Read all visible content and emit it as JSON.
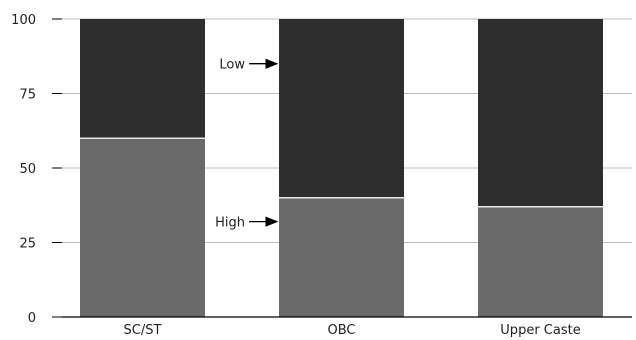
{
  "chart_data": {
    "type": "bar",
    "stacked": true,
    "categories": [
      "SC/ST",
      "OBC",
      "Upper Caste"
    ],
    "series": [
      {
        "name": "High",
        "values": [
          60,
          40,
          37
        ],
        "color": "#6a6a6a"
      },
      {
        "name": "Low",
        "values": [
          40,
          60,
          63
        ],
        "color": "#2e2e2e"
      }
    ],
    "ylim": [
      0,
      100
    ],
    "yticks": [
      "0",
      "25",
      "50",
      "75",
      "100"
    ],
    "grid": true,
    "annotations": [
      {
        "text": "Low",
        "points_to": "OBC"
      },
      {
        "text": "High",
        "points_to": "OBC"
      }
    ]
  }
}
